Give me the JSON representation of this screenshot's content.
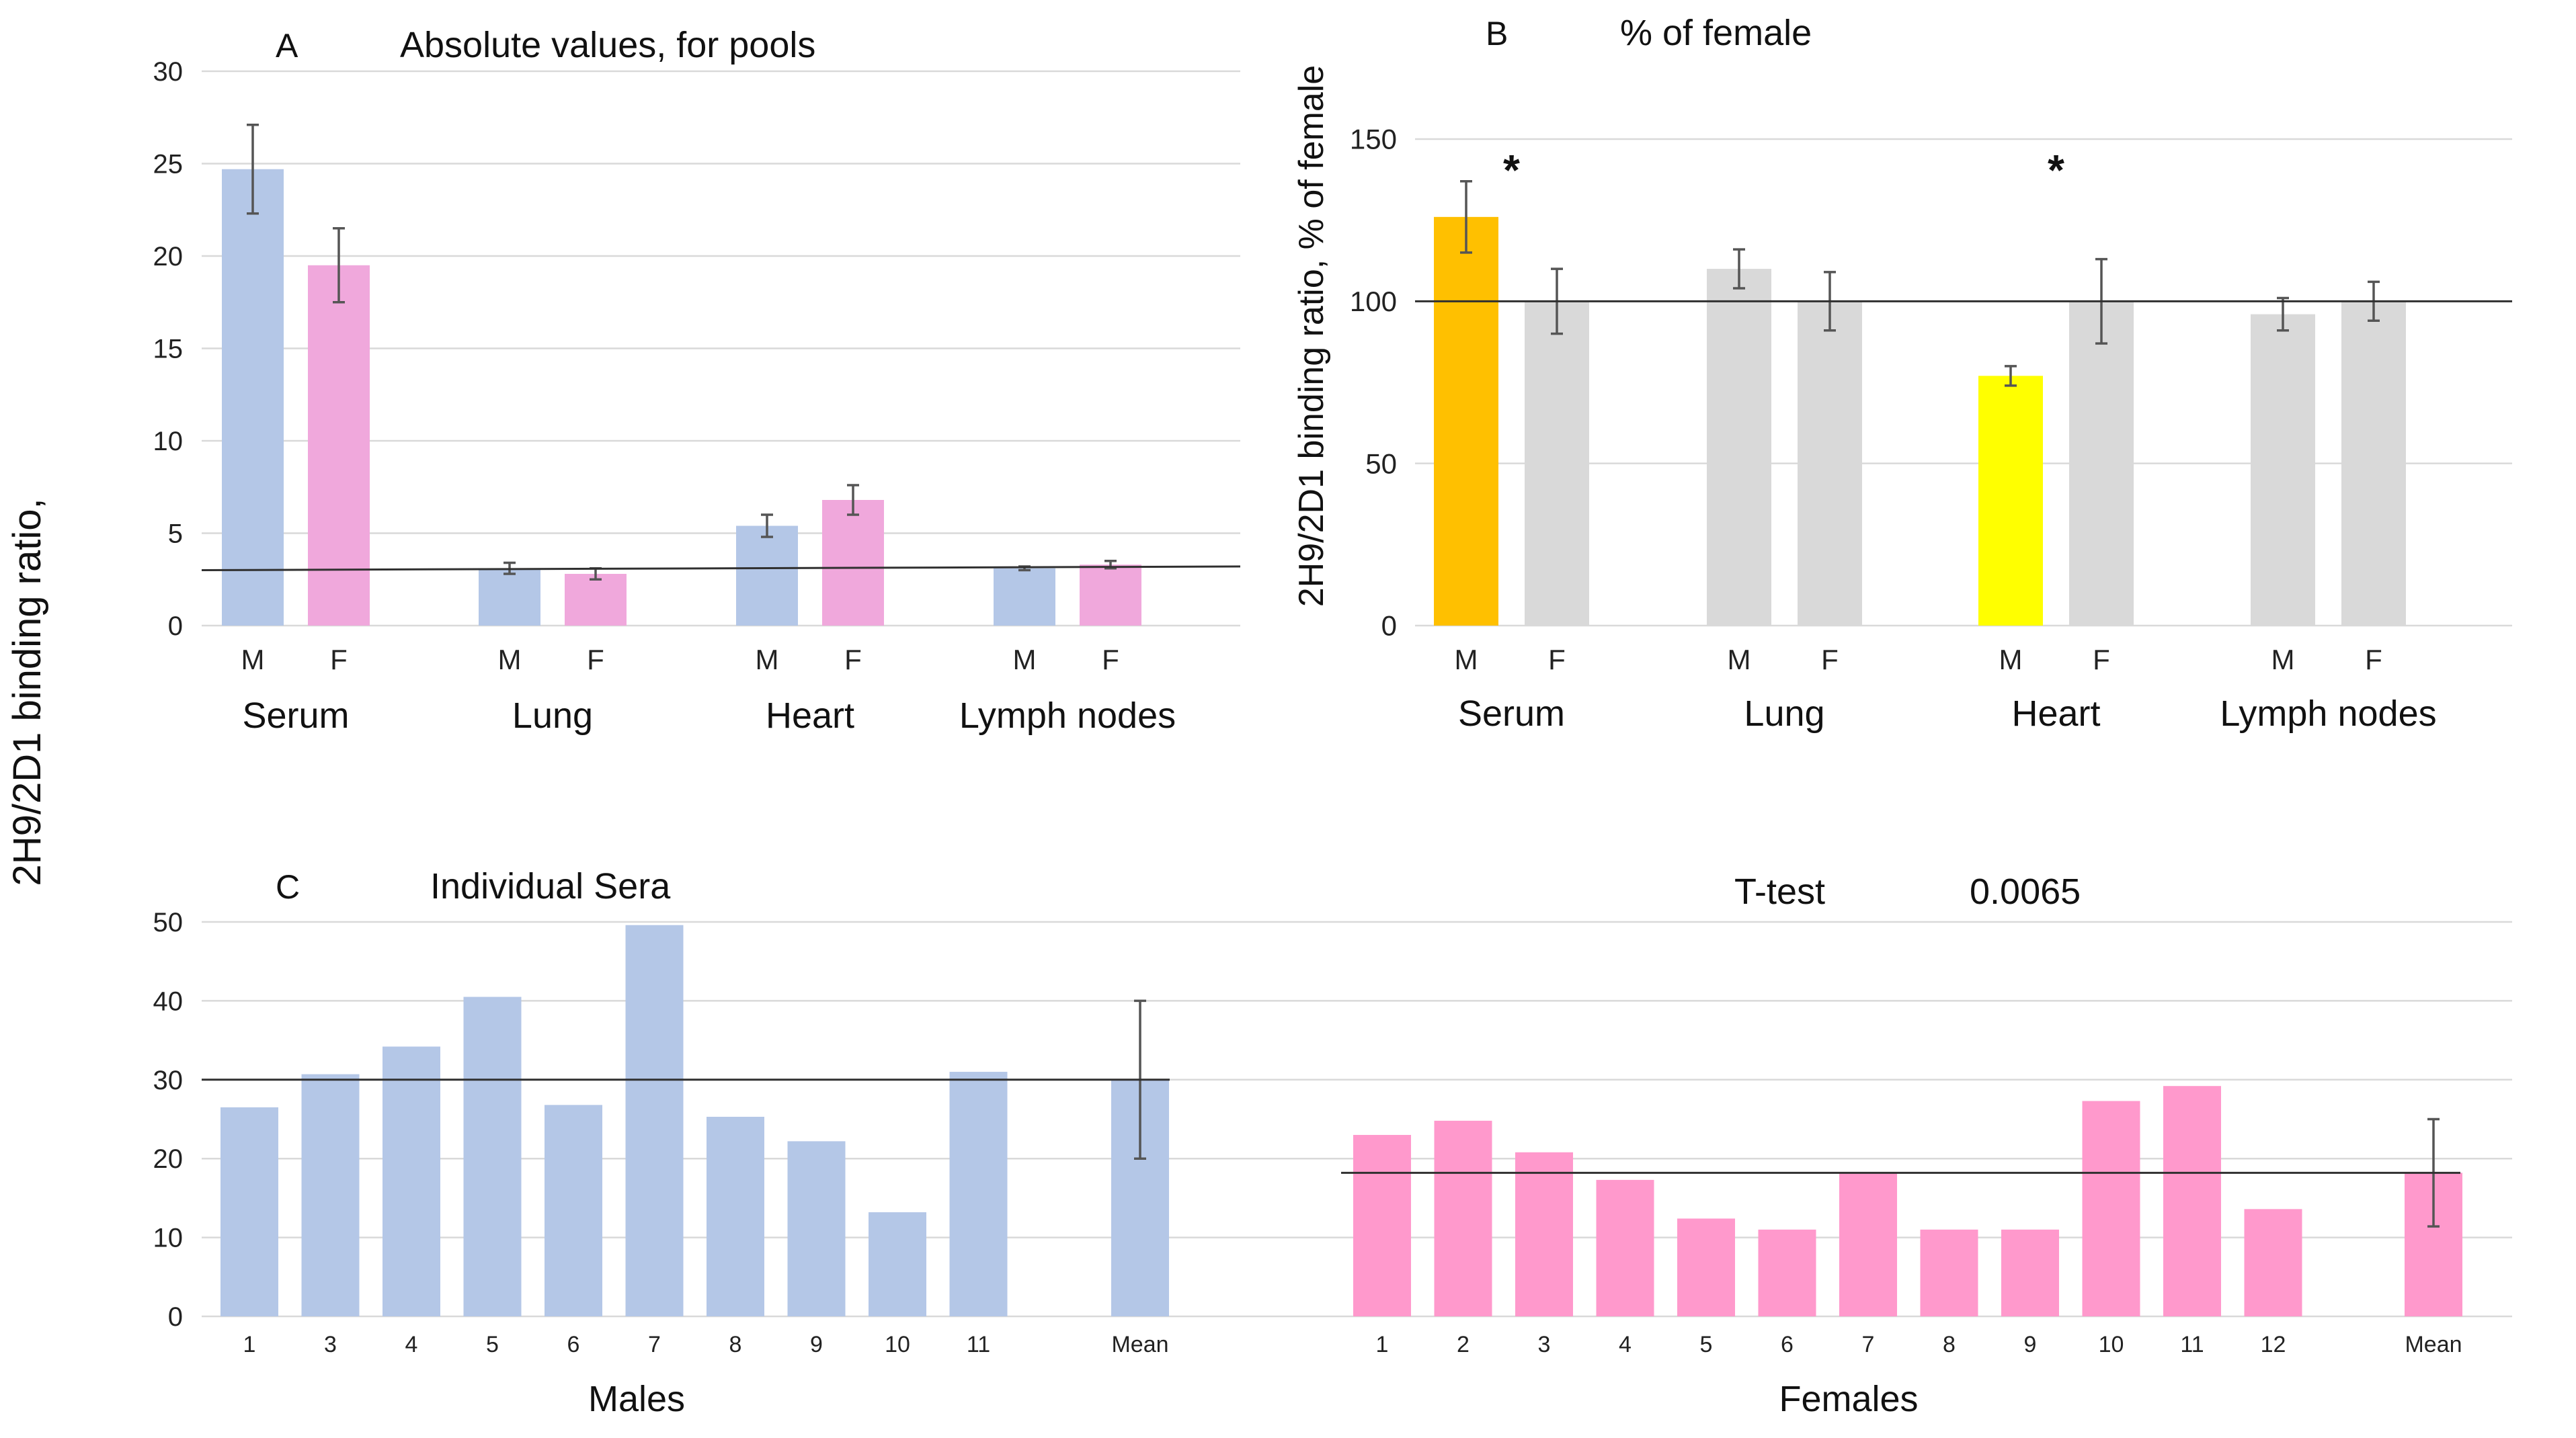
{
  "figure": {
    "y_axis_label": "2H9/2D1 binding ratio,",
    "panel_b_y_axis_label": "2H9/2D1 binding ratio, % of female"
  },
  "chart_data": [
    {
      "id": "A",
      "type": "bar",
      "panel_letter": "A",
      "title": "Absolute values, for pools",
      "groups": [
        "Serum",
        "Lung",
        "Heart",
        "Lymph nodes"
      ],
      "sex_labels": [
        "M",
        "F"
      ],
      "series": [
        {
          "name": "M",
          "color": "#b4c7e7",
          "values": [
            24.7,
            3.1,
            5.4,
            3.1
          ],
          "errors": [
            2.4,
            0.3,
            0.6,
            0.1
          ]
        },
        {
          "name": "F",
          "color": "#f0a8dc",
          "values": [
            19.5,
            2.8,
            6.8,
            3.3
          ],
          "errors": [
            2.0,
            0.3,
            0.8,
            0.2
          ]
        }
      ],
      "reference_line": {
        "start": 3.0,
        "end": 3.2
      },
      "ylim": [
        0,
        30
      ],
      "yticks": [
        0,
        5,
        10,
        15,
        20,
        25,
        30
      ]
    },
    {
      "id": "B",
      "type": "bar",
      "panel_letter": "B",
      "title": "% of female",
      "ylabel": "2H9/2D1 binding ratio, % of female",
      "groups": [
        "Serum",
        "Lung",
        "Heart",
        "Lymph nodes"
      ],
      "sex_labels": [
        "M",
        "F"
      ],
      "series": [
        {
          "name": "M",
          "values": [
            126,
            110,
            77,
            96
          ],
          "errors": [
            11,
            6,
            3,
            5
          ],
          "colors": [
            "#ffc000",
            "#d9d9d9",
            "#ffff00",
            "#d9d9d9"
          ]
        },
        {
          "name": "F",
          "values": [
            100,
            100,
            100,
            100
          ],
          "errors": [
            10,
            9,
            13,
            6
          ],
          "colors": [
            "#d9d9d9",
            "#d9d9d9",
            "#d9d9d9",
            "#d9d9d9"
          ]
        }
      ],
      "significance": [
        {
          "group": "Serum",
          "label": "*"
        },
        {
          "group": "Heart",
          "label": "*"
        }
      ],
      "reference_line": {
        "value": 100
      },
      "ylim": [
        0,
        150
      ],
      "yticks": [
        0,
        50,
        100,
        150
      ]
    },
    {
      "id": "C",
      "type": "bar",
      "panel_letter": "C",
      "title": "Individual Sera",
      "ylim": [
        0,
        50
      ],
      "yticks": [
        0,
        10,
        20,
        30,
        40,
        50
      ],
      "stat_label": "T-test",
      "stat_value": "0.0065",
      "groups": [
        {
          "name": "Males",
          "color": "#b4c7e7",
          "categories": [
            "1",
            "3",
            "4",
            "5",
            "6",
            "7",
            "8",
            "9",
            "10",
            "11",
            "Mean"
          ],
          "values": [
            26.5,
            30.7,
            34.2,
            40.5,
            26.8,
            49.6,
            25.3,
            22.2,
            13.2,
            31.0,
            30.0
          ],
          "mean_error": 10,
          "mean_line": 30.0
        },
        {
          "name": "Females",
          "color": "#ff99cc",
          "categories": [
            "1",
            "2",
            "3",
            "4",
            "5",
            "6",
            "7",
            "8",
            "9",
            "10",
            "11",
            "12",
            "Mean"
          ],
          "values": [
            23.0,
            24.8,
            20.8,
            17.3,
            12.4,
            11.0,
            18.3,
            11.0,
            11.0,
            27.3,
            29.2,
            13.6,
            18.2
          ],
          "mean_error": 6.8,
          "mean_line": 18.2
        }
      ]
    }
  ]
}
